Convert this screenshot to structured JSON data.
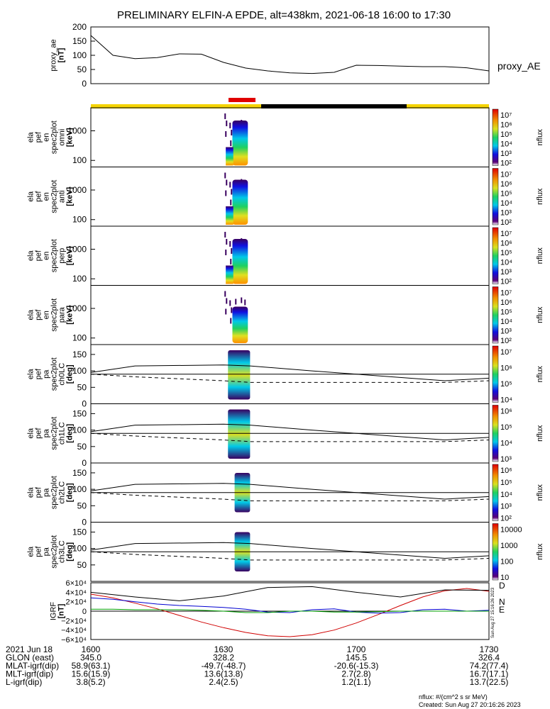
{
  "title": "PRELIMINARY ELFIN-A EPDE, alt=438km, 2021-06-18 16:00 to 17:30",
  "colors": {
    "sunlight_bar": "#f5d400",
    "shadow_bar": "#000000",
    "science_zone_bar": "#e00000",
    "dipole_line": "#000000",
    "d_component": "#d00000",
    "n_component": "#0000d0",
    "e_component": "#00a000"
  },
  "panels": {
    "ae": {
      "ylabel": [
        "proxy_ae",
        "[nT]"
      ],
      "yticks": [
        "200",
        "150",
        "100",
        "50",
        "0"
      ],
      "side_label": "proxy_AE"
    },
    "en_spec": [
      {
        "ylabel": [
          "ela",
          "pef",
          "en",
          "spec2plot",
          "omni",
          "[keV]"
        ],
        "yticks": [
          "1000",
          "100"
        ]
      },
      {
        "ylabel": [
          "ela",
          "pef",
          "en",
          "spec2plot",
          "anti",
          "[keV]"
        ],
        "yticks": [
          "1000",
          "100"
        ]
      },
      {
        "ylabel": [
          "ela",
          "pef",
          "en",
          "spec2plot",
          "perp",
          "[keV]"
        ],
        "yticks": [
          "1000",
          "100"
        ]
      },
      {
        "ylabel": [
          "ela",
          "pef",
          "en",
          "spec2plot",
          "para",
          "[keV]"
        ],
        "yticks": [
          "1000",
          "100"
        ]
      }
    ],
    "pa_spec": [
      {
        "ylabel": [
          "ela",
          "pef",
          "pa",
          "spec2plot",
          "ch0LC",
          "[deg]"
        ],
        "yticks": [
          "150",
          "100",
          "50",
          "0"
        ]
      },
      {
        "ylabel": [
          "ela",
          "pef",
          "pa",
          "spec2plot",
          "ch1LC",
          "[deg]"
        ],
        "yticks": [
          "150",
          "100",
          "50",
          "0"
        ]
      },
      {
        "ylabel": [
          "ela",
          "pef",
          "pa",
          "spec2plot",
          "ch2LC",
          "[deg]"
        ],
        "yticks": [
          "150",
          "100",
          "50",
          "0"
        ]
      },
      {
        "ylabel": [
          "ela",
          "pef",
          "pa",
          "spec2plot",
          "ch3LC",
          "[deg]"
        ],
        "yticks": [
          "150",
          "100",
          "50"
        ]
      }
    ],
    "igrf": {
      "ylabel": [
        "IGRF",
        "[nT]"
      ],
      "yticks": [
        "6×10⁴",
        "4×10⁴",
        "2×10⁴",
        "0",
        "−2×10⁴",
        "−4×10⁴",
        "−6×10⁴"
      ],
      "components": [
        "D",
        "N",
        "E"
      ],
      "side_note": "Sun Aug 27 15:16:26 2023"
    }
  },
  "colorbars": [
    {
      "label": "nflux",
      "ticks": [
        "10⁷",
        "10⁶",
        "10⁵",
        "10⁴",
        "10³",
        "10²"
      ]
    },
    {
      "label": "nflux",
      "ticks": [
        "10⁷",
        "10⁶",
        "10⁵",
        "10⁴",
        "10³",
        "10²"
      ]
    },
    {
      "label": "nflux",
      "ticks": [
        "10⁷",
        "10⁶",
        "10⁵",
        "10⁴",
        "10³",
        "10²"
      ]
    },
    {
      "label": "nflux",
      "ticks": [
        "10⁷",
        "10⁶",
        "10⁵",
        "10⁴",
        "10³",
        "10²"
      ]
    },
    {
      "label": "nflux",
      "ticks": [
        "10⁷",
        "10⁶",
        "10⁵",
        "10⁴"
      ]
    },
    {
      "label": "nflux",
      "ticks": [
        "10⁶",
        "10⁵",
        "10⁴",
        "10³"
      ]
    },
    {
      "label": "nflux",
      "ticks": [
        "10⁶",
        "10⁵",
        "10⁴",
        "10³",
        "10²"
      ]
    },
    {
      "label": "nflux",
      "ticks": [
        "10000",
        "1000",
        "100",
        "10"
      ]
    }
  ],
  "footer": {
    "rows": [
      {
        "label": "2021 Jun 18",
        "values": [
          "1600",
          "1630",
          "1700",
          "1730"
        ]
      },
      {
        "label": "GLON (east)",
        "values": [
          "345.0",
          "328.2",
          "145.5",
          "326.4"
        ]
      },
      {
        "label": "MLAT-igrf(dip)",
        "values": [
          "58.9(63.1)",
          "-49.7(-48.7)",
          "-20.6(-15.3)",
          "74.2(77.4)"
        ]
      },
      {
        "label": "MLT-igrf(dip)",
        "values": [
          "15.6(15.9)",
          "13.6(13.8)",
          "2.7(2.8)",
          "16.7(17.1)"
        ]
      },
      {
        "label": "L-igrf(dip)",
        "values": [
          "3.8(5.2)",
          "2.4(2.5)",
          "1.2(1.1)",
          "13.7(22.5)"
        ]
      }
    ],
    "note1": "nflux: #/(cm^2 s sr MeV)",
    "note2": "Created: Sun Aug 27 20:16:26 2023"
  },
  "chart_data": [
    {
      "type": "line",
      "title": "PRELIMINARY ELFIN-A EPDE, alt=438km, 2021-06-18 16:00 to 17:30",
      "ylabel": "proxy_ae [nT]",
      "xlabel": "",
      "x_unit": "minutes after 16:00 UT",
      "x": [
        0,
        5,
        10,
        15,
        20,
        25,
        30,
        35,
        40,
        45,
        50,
        55,
        60,
        65,
        70,
        75,
        80,
        85,
        90
      ],
      "series": [
        {
          "name": "proxy_AE",
          "values": [
            170,
            100,
            88,
            92,
            105,
            104,
            75,
            55,
            45,
            38,
            36,
            40,
            65,
            64,
            62,
            60,
            60,
            56,
            45
          ]
        }
      ],
      "ylim": [
        0,
        200
      ]
    },
    {
      "type": "heatmap",
      "description_units": "energy spectrograms, keV vs time",
      "ylabel": "[keV]",
      "ylim": [
        60,
        6000
      ],
      "yscale": "log",
      "colorbar": "nflux",
      "active_interval_minutes": [
        30,
        36
      ]
    },
    {
      "type": "heatmap",
      "description_units": "pitch-angle spectrograms, deg vs time",
      "ylabel": "[deg]",
      "ylim": [
        0,
        180
      ],
      "colorbar": "nflux",
      "active_interval_minutes": [
        30,
        36
      ]
    },
    {
      "type": "line",
      "ylabel": "IGRF [nT]",
      "x_unit": "minutes after 16:00 UT",
      "x": [
        0,
        5,
        10,
        15,
        20,
        25,
        30,
        35,
        40,
        45,
        50,
        55,
        60,
        65,
        70,
        75,
        80,
        85,
        90
      ],
      "series": [
        {
          "name": "D",
          "values": [
            36000,
            28000,
            17000,
            5000,
            -9000,
            -23000,
            -35000,
            -45000,
            -52000,
            -54000,
            -50000,
            -40000,
            -25000,
            -7000,
            12000,
            30000,
            43000,
            48000,
            42000
          ]
        },
        {
          "name": "N",
          "values": [
            28000,
            25000,
            20000,
            15000,
            12000,
            10000,
            8000,
            4000,
            -2000,
            -3000,
            3000,
            5000,
            -2000,
            -4000,
            -3000,
            3000,
            4000,
            0,
            2000
          ]
        },
        {
          "name": "E",
          "values": [
            4000,
            4000,
            3000,
            3000,
            3000,
            2000,
            0,
            -3000,
            -3000,
            0,
            0,
            -2000,
            -2000,
            -1000,
            0,
            0,
            0,
            0,
            0
          ]
        }
      ],
      "ylim": [
        -60000,
        60000
      ]
    }
  ]
}
